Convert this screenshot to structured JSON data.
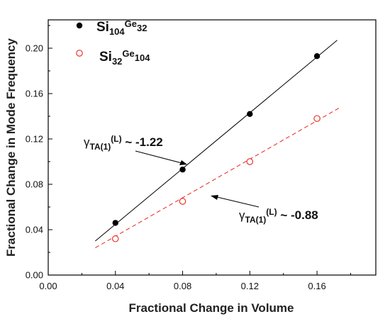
{
  "chart_data": {
    "type": "scatter",
    "xlabel": "Fractional Change in Volume",
    "ylabel": "Fractional Change in Mode Frequency",
    "xlim": [
      0.0,
      0.195
    ],
    "ylim": [
      0.0,
      0.225
    ],
    "xticks": [
      {
        "value": 0.0,
        "label": "0.00"
      },
      {
        "value": 0.04,
        "label": "0.04"
      },
      {
        "value": 0.08,
        "label": "0.08"
      },
      {
        "value": 0.12,
        "label": "0.12"
      },
      {
        "value": 0.16,
        "label": "0.16"
      }
    ],
    "yticks": [
      {
        "value": 0.0,
        "label": "0.00"
      },
      {
        "value": 0.04,
        "label": "0.04"
      },
      {
        "value": 0.08,
        "label": "0.08"
      },
      {
        "value": 0.12,
        "label": "0.12"
      },
      {
        "value": 0.16,
        "label": "0.16"
      },
      {
        "value": 0.2,
        "label": "0.20"
      }
    ],
    "grid": false,
    "legend_position": "top-left",
    "series": [
      {
        "name_main": "Si",
        "name_sub1": "104",
        "name_sup": "Ge",
        "name_sub2": "32",
        "marker": "filled-circle",
        "color": "#000000",
        "points": [
          {
            "x": 0.04,
            "y": 0.046
          },
          {
            "x": 0.08,
            "y": 0.093
          },
          {
            "x": 0.12,
            "y": 0.142
          },
          {
            "x": 0.16,
            "y": 0.193
          }
        ],
        "fit": {
          "x": [
            0.028,
            0.172
          ],
          "y": [
            0.03,
            0.207
          ],
          "style": "solid",
          "color": "#000000"
        }
      },
      {
        "name_main": "Si",
        "name_sub1": "32",
        "name_sup": "Ge",
        "name_sub2": "104",
        "marker": "open-circle",
        "color": "#e8251b",
        "points": [
          {
            "x": 0.04,
            "y": 0.032
          },
          {
            "x": 0.08,
            "y": 0.065
          },
          {
            "x": 0.12,
            "y": 0.1
          },
          {
            "x": 0.16,
            "y": 0.138
          }
        ],
        "fit": {
          "x": [
            0.028,
            0.174
          ],
          "y": [
            0.024,
            0.148
          ],
          "style": "dashed",
          "color": "#e8251b"
        }
      }
    ],
    "annotations": [
      {
        "symbol": "γ",
        "subscript": "TA(1)",
        "superscript": "(L)",
        "text": " ~ -1.22",
        "arrow_to": {
          "x": 0.08,
          "y": 0.093
        }
      },
      {
        "symbol": "γ",
        "subscript": "TA(1)",
        "superscript": "(L)",
        "text": " ~ -0.88",
        "arrow_to": {
          "x": 0.086,
          "y": 0.069
        }
      }
    ]
  }
}
